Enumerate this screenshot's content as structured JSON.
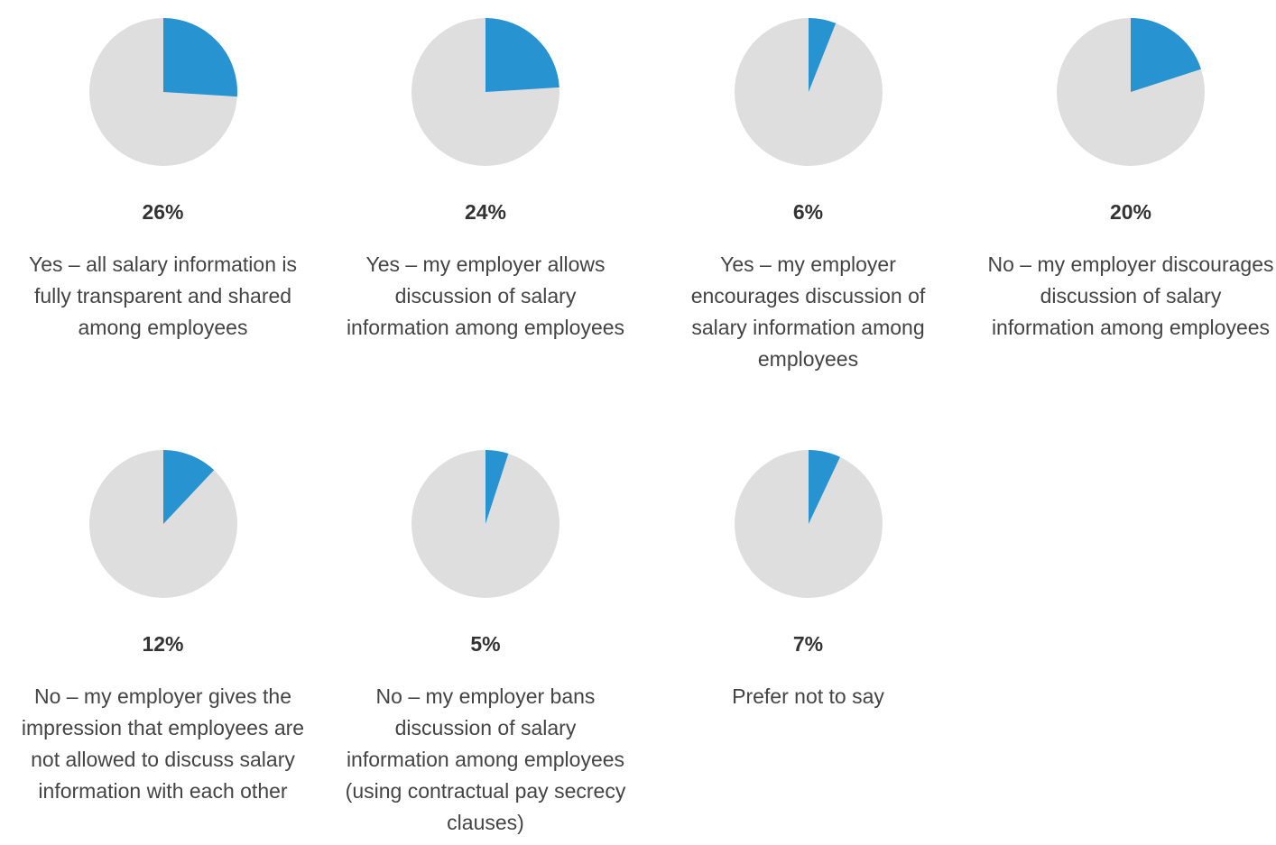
{
  "chart_data": [
    {
      "type": "pie",
      "value": 26,
      "label": "26%",
      "description": "Yes – all salary information is fully transparent and shared among employees"
    },
    {
      "type": "pie",
      "value": 24,
      "label": "24%",
      "description": "Yes – my employer allows discussion of salary information among employees"
    },
    {
      "type": "pie",
      "value": 6,
      "label": "6%",
      "description": "Yes – my employer encourages discussion of salary information among employees"
    },
    {
      "type": "pie",
      "value": 20,
      "label": "20%",
      "description": "No – my employer discourages discussion of salary information among employees"
    },
    {
      "type": "pie",
      "value": 12,
      "label": "12%",
      "description": "No – my employer gives the impression that employees are not allowed to discuss salary information with each other"
    },
    {
      "type": "pie",
      "value": 5,
      "label": "5%",
      "description": "No – my employer bans discussion of salary information among employees (using contractual pay secrecy clauses)"
    },
    {
      "type": "pie",
      "value": 7,
      "label": "7%",
      "description": "Prefer not to say"
    }
  ],
  "colors": {
    "highlight": "#2893d1",
    "remainder": "#dedede"
  }
}
